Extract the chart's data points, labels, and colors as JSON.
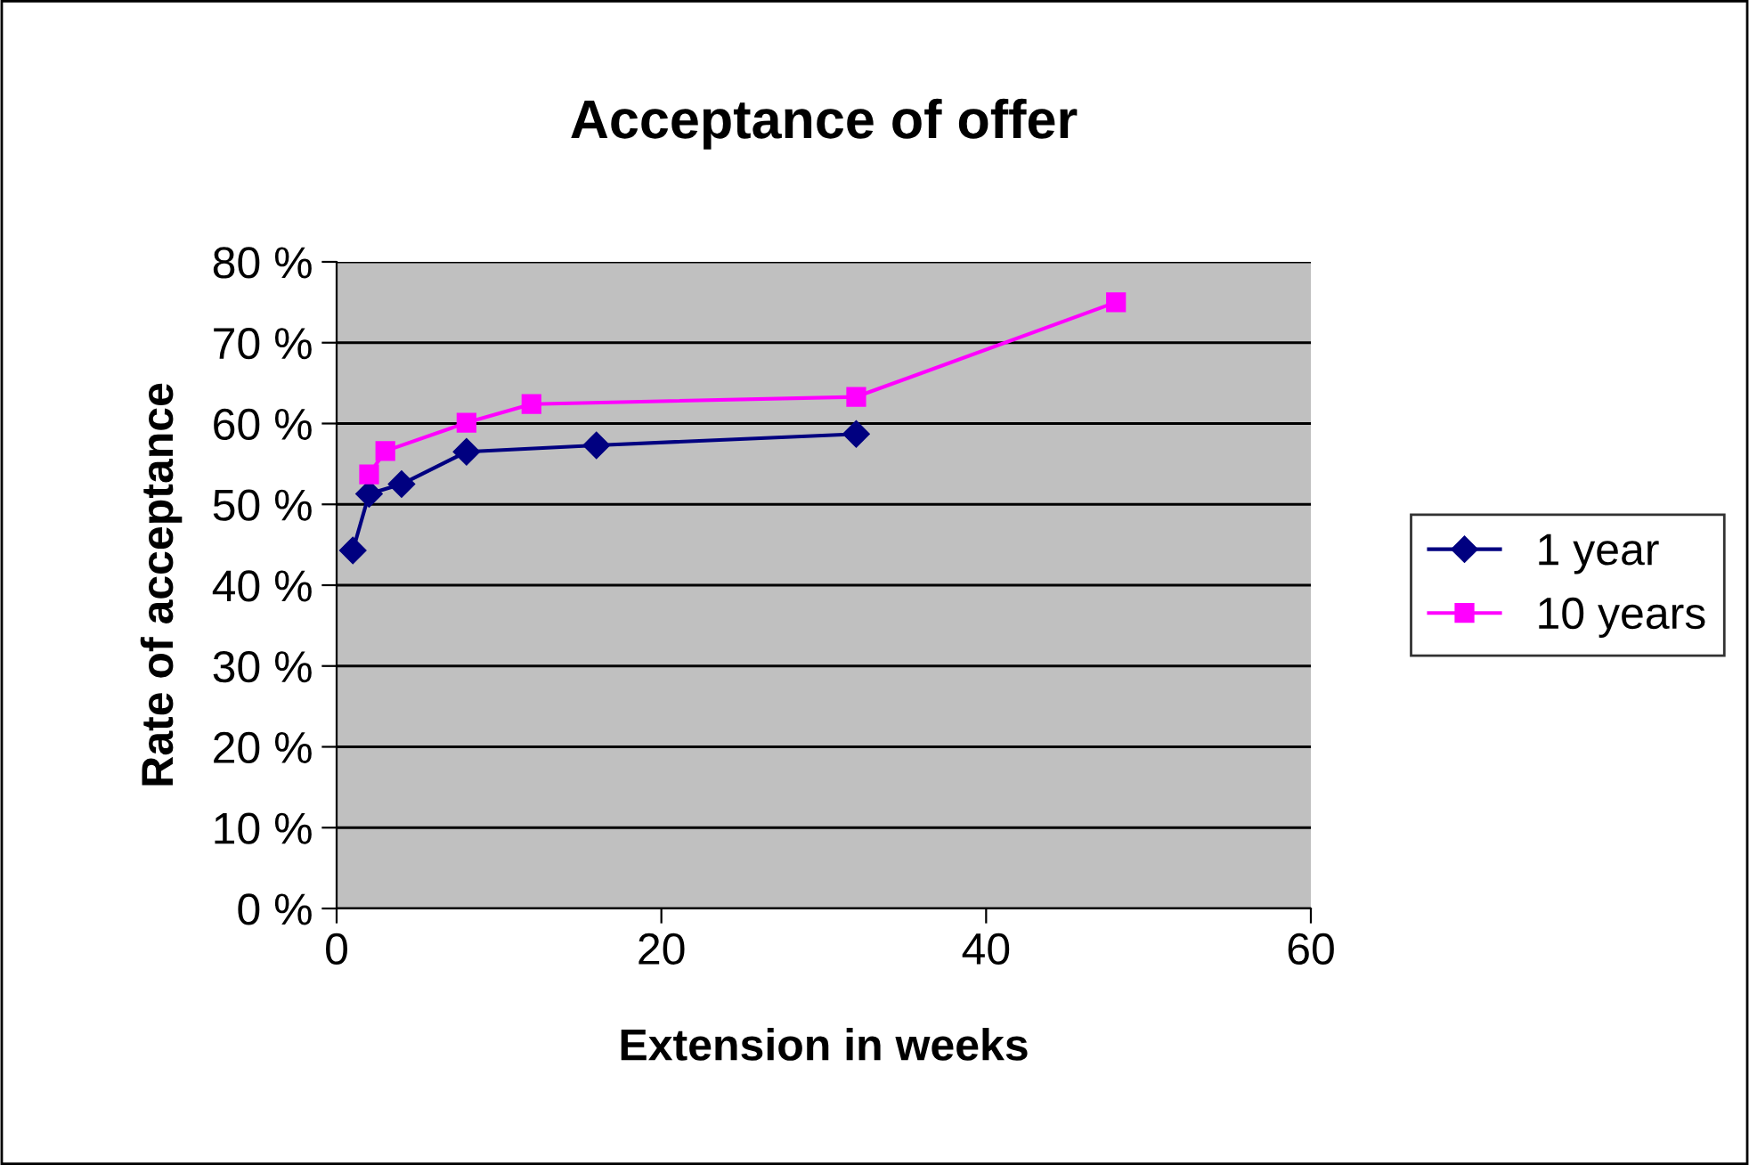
{
  "chart_data": {
    "type": "line",
    "title": "Acceptance of offer",
    "xlabel": "Extension in weeks",
    "ylabel": "Rate of acceptance",
    "xlim": [
      0,
      60
    ],
    "xticks": [
      0,
      20,
      40,
      60
    ],
    "ylim": [
      0,
      80
    ],
    "yticks": [
      {
        "value": 0,
        "label": "0 %"
      },
      {
        "value": 10,
        "label": "10 %"
      },
      {
        "value": 20,
        "label": "20 %"
      },
      {
        "value": 30,
        "label": "30 %"
      },
      {
        "value": 40,
        "label": "40 %"
      },
      {
        "value": 50,
        "label": "50 %"
      },
      {
        "value": 60,
        "label": "60 %"
      },
      {
        "value": 70,
        "label": "70 %"
      },
      {
        "value": 80,
        "label": "80 %"
      }
    ],
    "grid": "y",
    "legend": "right",
    "series": [
      {
        "name": "1 year",
        "color": "#000080",
        "marker": "diamond",
        "x": [
          1,
          2,
          4,
          8,
          16,
          32
        ],
        "values": [
          44.3,
          51.3,
          52.5,
          56.5,
          57.3,
          58.7
        ]
      },
      {
        "name": "10 years",
        "color": "#ff00ff",
        "marker": "square",
        "x": [
          2,
          3,
          8,
          12,
          32,
          48
        ],
        "values": [
          53.7,
          56.6,
          60.1,
          62.4,
          63.3,
          75.0
        ]
      }
    ]
  }
}
